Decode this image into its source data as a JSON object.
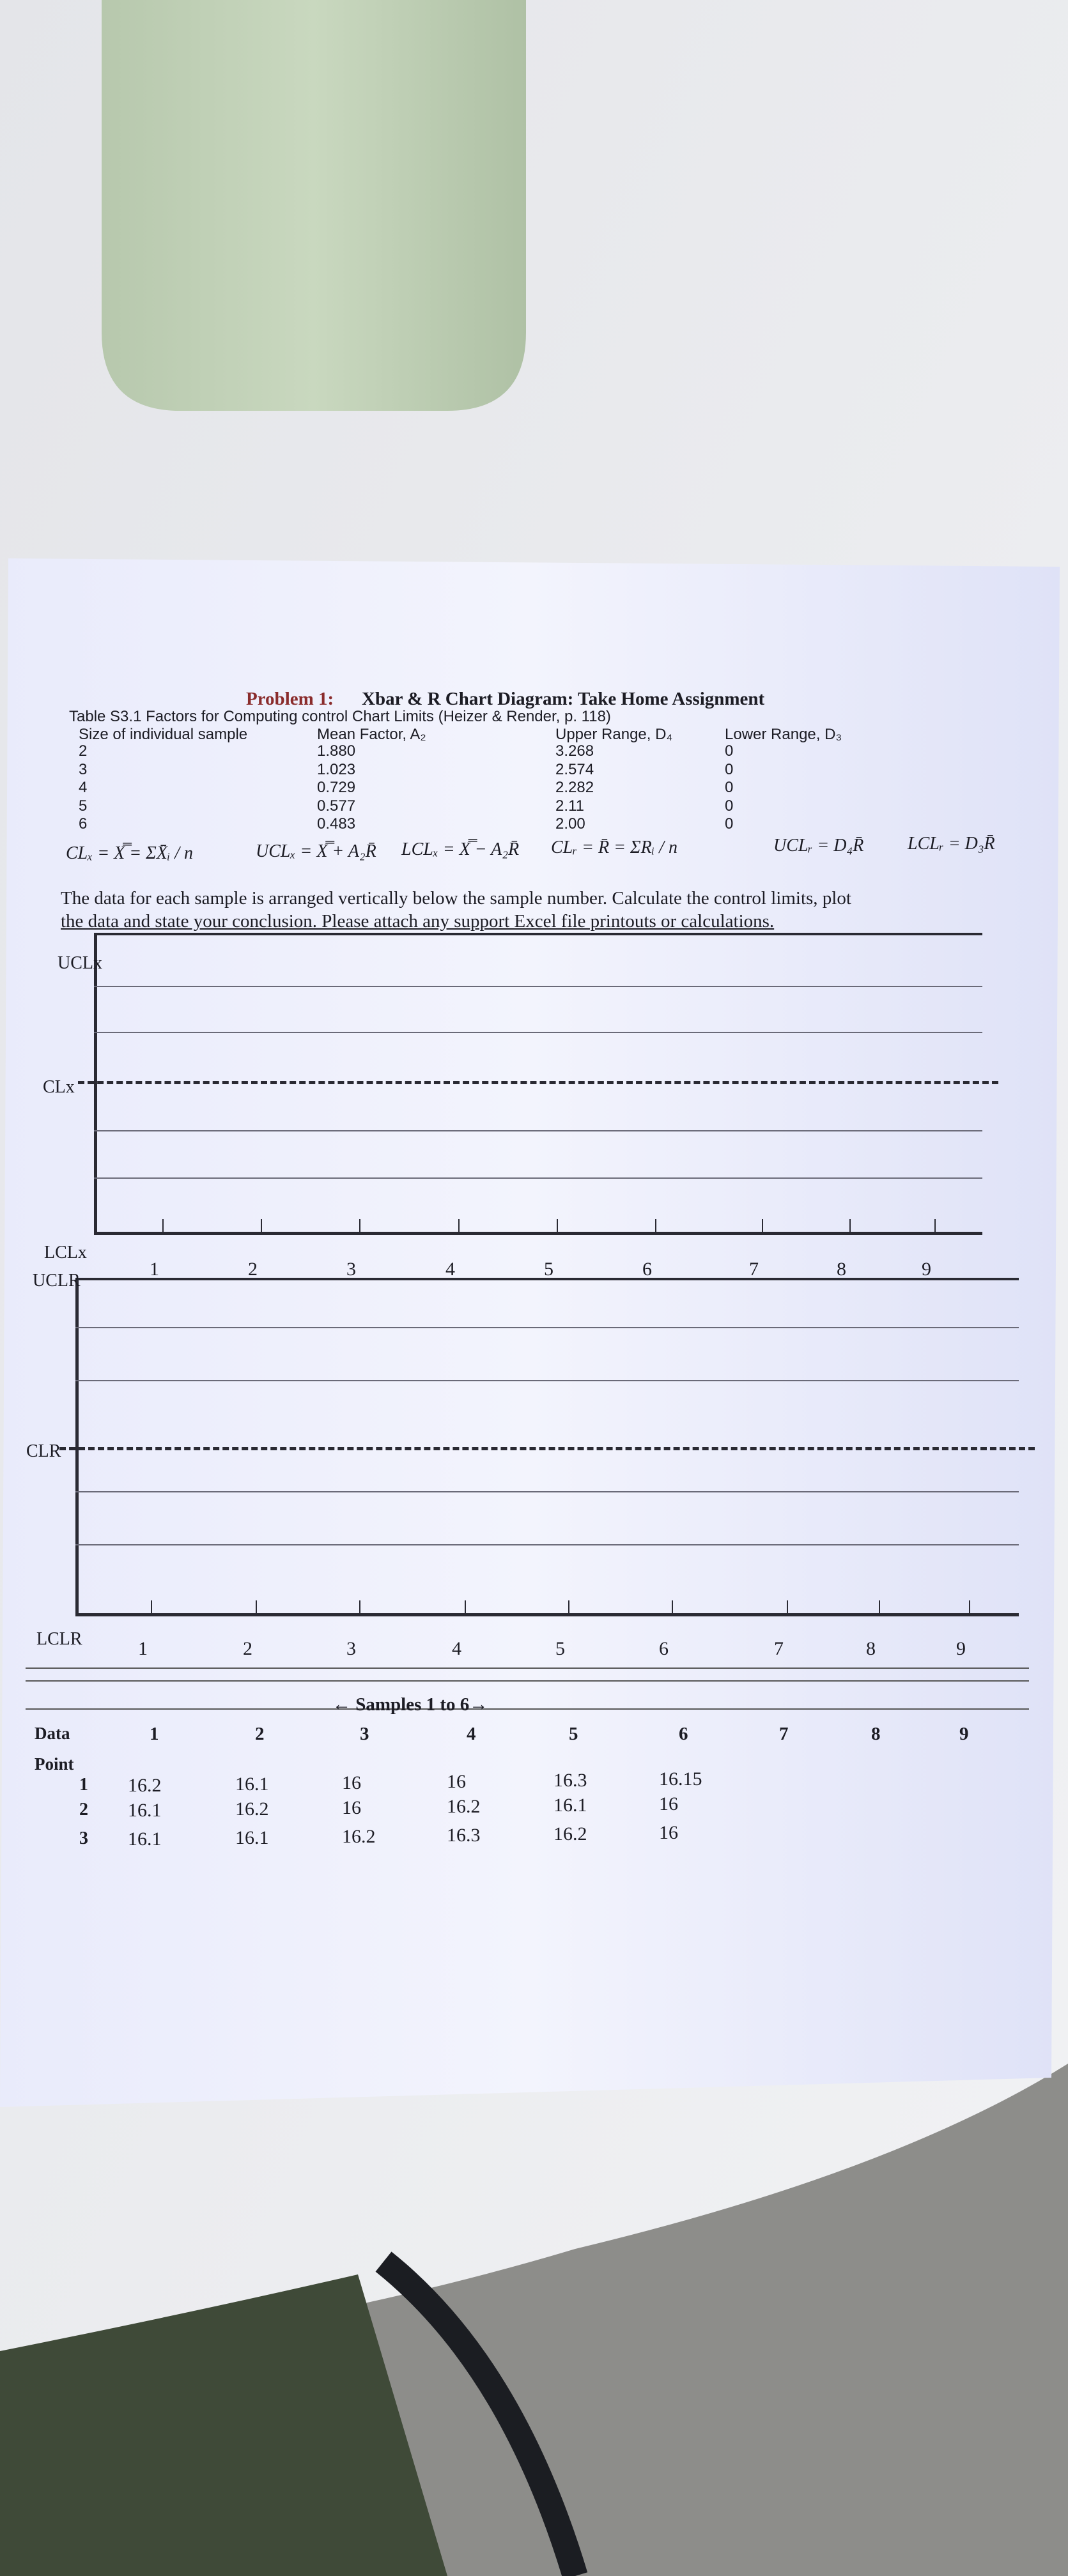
{
  "header": {
    "problem": "Problem 1:",
    "title": "Xbar & R Chart Diagram: Take Home Assignment"
  },
  "factors": {
    "caption": "Table S3.1 Factors for Computing control Chart Limits (Heizer & Render, p. 118)",
    "columns": [
      "Size of individual sample",
      "Mean Factor, A₂",
      "Upper Range, D₄",
      "Lower Range, D₃"
    ],
    "rows": [
      [
        "2",
        "1.880",
        "3.268",
        "0"
      ],
      [
        "3",
        "1.023",
        "2.574",
        "0"
      ],
      [
        "4",
        "0.729",
        "2.282",
        "0"
      ],
      [
        "5",
        "0.577",
        "2.11",
        "0"
      ],
      [
        "6",
        "0.483",
        "2.00",
        "0"
      ]
    ]
  },
  "formulas": [
    "CLₓ = X̿ = ΣX̄ᵢ / n",
    "UCLₓ = X̿ + A₂R̄",
    "LCLₓ = X̿ − A₂R̄",
    "CLᵣ = R̄ = ΣRᵢ / n",
    "UCLᵣ = D₄R̄",
    "LCLᵣ = D₃R̄"
  ],
  "instructions": [
    "The data for each sample is arranged vertically below the sample number. Calculate the control limits, plot",
    "the data and state your conclusion.  Please attach any support Excel file printouts or calculations."
  ],
  "xbar_chart": {
    "labels": [
      "UCLx",
      "CLx",
      "LCLx"
    ],
    "samples": [
      "1",
      "2",
      "3",
      "4",
      "5",
      "6",
      "7",
      "8",
      "9"
    ]
  },
  "r_chart": {
    "labels": [
      "UCLR",
      "CLR",
      "LCLR"
    ],
    "samples": [
      "1",
      "2",
      "3",
      "4",
      "5",
      "6",
      "7",
      "8",
      "9"
    ]
  },
  "data_table": {
    "samples_header": "← Samples 1 to 6→",
    "row_header": [
      "Data",
      "Point"
    ],
    "samples": [
      "1",
      "2",
      "3",
      "4",
      "5",
      "6",
      "7",
      "8",
      "9"
    ],
    "rows": [
      {
        "point": "1",
        "values": [
          "16.2",
          "16.1",
          "16",
          "16",
          "16.3",
          "16.15"
        ]
      },
      {
        "point": "2",
        "values": [
          "16.1",
          "16.2",
          "16",
          "16.2",
          "16.1",
          "16"
        ]
      },
      {
        "point": "3",
        "values": [
          "16.1",
          "16.1",
          "16.2",
          "16.3",
          "16.2",
          "16"
        ]
      }
    ]
  }
}
